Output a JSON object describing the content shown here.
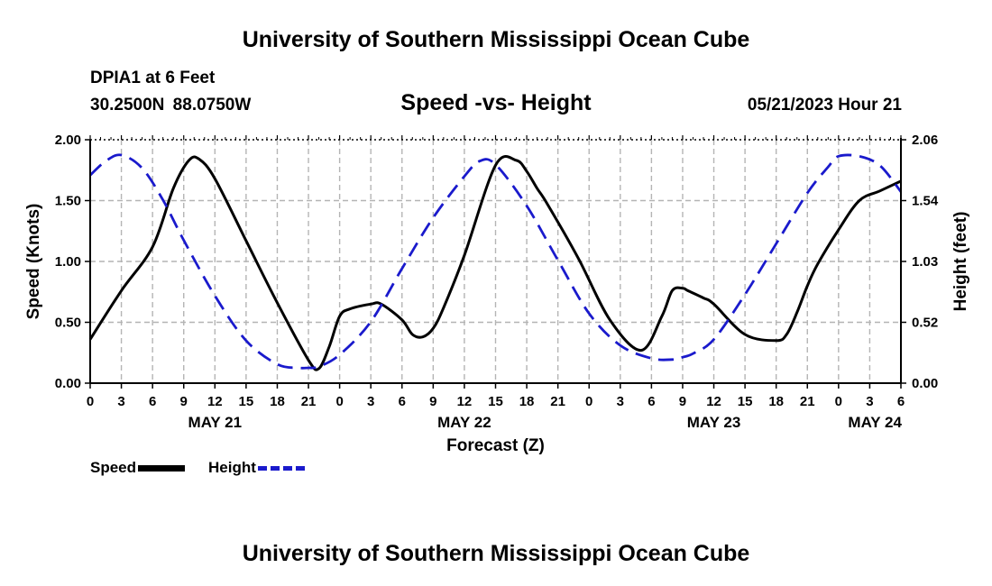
{
  "header": {
    "main_title": "University of Southern Mississippi Ocean Cube",
    "station": "DPIA1 at 6 Feet",
    "coordinates": "30.2500N 88.0750W",
    "subtitle": "Speed -vs- Height",
    "datetime": "05/21/2023 Hour 21"
  },
  "footer": {
    "title": "University of Southern Mississippi Ocean Cube"
  },
  "legend": {
    "speed_label": "Speed",
    "height_label": "Height"
  },
  "colors": {
    "speed": "#000000",
    "height": "#1a1acc",
    "grid": "#b4b4b4"
  },
  "chart_data": {
    "type": "line",
    "title": "Speed -vs- Height",
    "xlabel": "Forecast (Z)",
    "ylabel": "Speed (Knots)",
    "y2label": "Height (feet)",
    "x_unit": "hours from May 21 00Z",
    "xlim": [
      0,
      78
    ],
    "ylim": [
      0,
      2.0
    ],
    "y2lim": [
      0,
      2.06
    ],
    "yticks": [
      "0.00",
      "0.50",
      "1.00",
      "1.50",
      "2.00"
    ],
    "y2ticks": [
      "0.00",
      "0.52",
      "1.03",
      "1.54",
      "2.06"
    ],
    "y2tick_values": [
      0,
      0.515,
      1.03,
      1.545,
      2.06
    ],
    "xtick_labels": [
      "0",
      "3",
      "6",
      "9",
      "12",
      "15",
      "18",
      "21",
      "0",
      "3",
      "6",
      "9",
      "12",
      "15",
      "18",
      "21",
      "0",
      "3",
      "6",
      "9",
      "12",
      "15",
      "18",
      "21",
      "0",
      "3",
      "6"
    ],
    "date_labels": [
      {
        "label": "MAY 21",
        "hour": 12
      },
      {
        "label": "MAY 22",
        "hour": 36
      },
      {
        "label": "MAY 23",
        "hour": 60
      },
      {
        "label": "MAY 24",
        "hour": 75.5
      }
    ],
    "grid": true,
    "series": [
      {
        "name": "Speed",
        "axis": "left",
        "style": "solid",
        "x": [
          0,
          3,
          6,
          8,
          9.5,
          10.5,
          12,
          15,
          18,
          21,
          22,
          23,
          24,
          25,
          27,
          28,
          30,
          31,
          32,
          33,
          34,
          36,
          39,
          41,
          42,
          43,
          44,
          47,
          50,
          53,
          55,
          56,
          57,
          57.5,
          59,
          60,
          63,
          66,
          67,
          68,
          69,
          70,
          72,
          74,
          76,
          78
        ],
        "y": [
          0.36,
          0.76,
          1.12,
          1.6,
          1.83,
          1.84,
          1.68,
          1.17,
          0.66,
          0.19,
          0.12,
          0.3,
          0.55,
          0.61,
          0.65,
          0.65,
          0.52,
          0.4,
          0.38,
          0.45,
          0.62,
          1.05,
          1.79,
          1.83,
          1.74,
          1.6,
          1.47,
          1.02,
          0.52,
          0.27,
          0.55,
          0.76,
          0.78,
          0.76,
          0.7,
          0.65,
          0.4,
          0.35,
          0.4,
          0.58,
          0.8,
          0.98,
          1.26,
          1.5,
          1.58,
          1.66
        ]
      },
      {
        "name": "Height",
        "axis": "right",
        "style": "dashed",
        "x": [
          0,
          1.5,
          3,
          5,
          7,
          9,
          12,
          15,
          18,
          20,
          21,
          22,
          24,
          27,
          30,
          33,
          36,
          37.5,
          39,
          42,
          45,
          48,
          51,
          54,
          56,
          57,
          58,
          60,
          63,
          66,
          69,
          71,
          72,
          74,
          76,
          78
        ],
        "y": [
          1.76,
          1.88,
          1.93,
          1.82,
          1.55,
          1.21,
          0.74,
          0.36,
          0.16,
          0.13,
          0.13,
          0.14,
          0.24,
          0.52,
          0.97,
          1.4,
          1.75,
          1.88,
          1.85,
          1.5,
          1.04,
          0.59,
          0.32,
          0.21,
          0.2,
          0.22,
          0.25,
          0.37,
          0.75,
          1.18,
          1.61,
          1.83,
          1.92,
          1.92,
          1.84,
          1.62
        ]
      }
    ]
  }
}
